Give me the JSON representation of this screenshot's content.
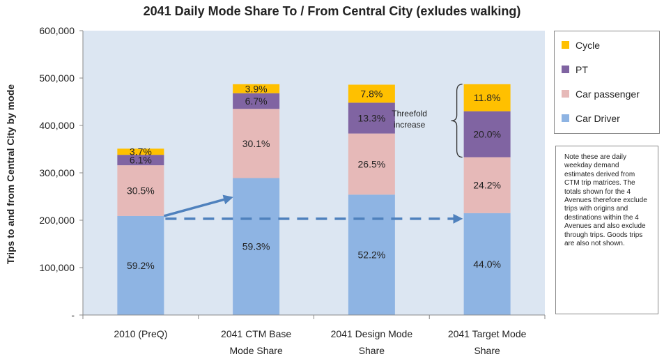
{
  "chart_data": {
    "type": "bar",
    "stacked": true,
    "title": "2041 Daily Mode Share To / From Central City (exludes walking)",
    "xlabel": "",
    "ylabel": "Trips to and from Central City by mode",
    "ylim": [
      0,
      600000
    ],
    "yticks": [
      "-",
      "100,000",
      "200,000",
      "300,000",
      "400,000",
      "500,000",
      "600,000"
    ],
    "grid": false,
    "legend_position": "right",
    "categories": [
      "2010 (PreQ)",
      "2041 CTM Base Mode Share",
      "2041 Design Mode Share",
      "2041 Target Mode Share"
    ],
    "category_label_lines": [
      [
        "2010 (PreQ)"
      ],
      [
        "2041 CTM Base",
        "Mode Share"
      ],
      [
        "2041 Design Mode",
        "Share"
      ],
      [
        "2041 Target Mode",
        "Share"
      ]
    ],
    "series": [
      {
        "name": "Car Driver",
        "color": "#8EB4E3",
        "values": [
          209000,
          289000,
          254000,
          215000
        ],
        "labels": [
          "59.2%",
          "59.3%",
          "52.2%",
          "44.0%"
        ]
      },
      {
        "name": "Car passenger",
        "color": "#E6B9B8",
        "values": [
          107000,
          146000,
          129000,
          118000
        ],
        "labels": [
          "30.5%",
          "30.1%",
          "26.5%",
          "24.2%"
        ]
      },
      {
        "name": "PT",
        "color": "#8064A2",
        "values": [
          22000,
          33000,
          65000,
          97000
        ],
        "labels": [
          "6.1%",
          "6.7%",
          "13.3%",
          "20.0%"
        ]
      },
      {
        "name": "Cycle",
        "color": "#FFC000",
        "values": [
          13000,
          19000,
          38000,
          57000
        ],
        "labels": [
          "3.7%",
          "3.9%",
          "7.8%",
          "11.8%"
        ]
      }
    ],
    "annotations": {
      "threefold_label_lines": [
        "Threefold",
        "increase"
      ]
    },
    "plot_background": "#DCE6F2"
  },
  "note": {
    "text": "Note these are daily weekday demand estimates derived from CTM trip matrices. The totals shown for the 4 Avenues therefore exclude trips with origins and destinations within the 4 Avenues and also exclude through trips.  Goods trips are also not shown."
  },
  "colors": {
    "arrow": "#4F81BD",
    "axis": "#888888"
  }
}
